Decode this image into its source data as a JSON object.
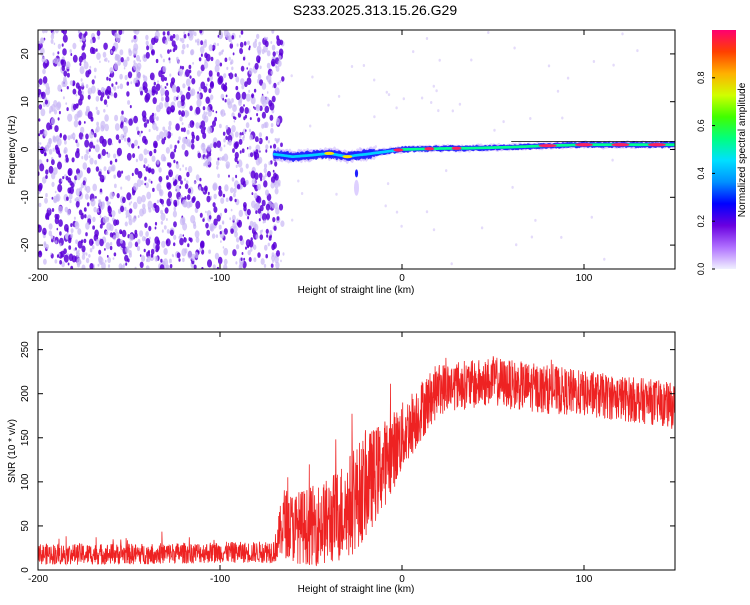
{
  "page_title": "S233.2025.313.15.26.G29",
  "colors": {
    "snr_line": "#ee2222",
    "scatter_dark": "#5a00d8",
    "scatter_light": "#c9b8f5",
    "colorbar": [
      "#f0f0ff",
      "#b070ff",
      "#6a00e0",
      "#0000ff",
      "#0090ff",
      "#00e0ff",
      "#00ff80",
      "#40ff00",
      "#d0ff00",
      "#ffb000",
      "#ff4000",
      "#ff0070"
    ]
  },
  "chart_data": [
    {
      "type": "heatmap",
      "title": "S233.2025.313.15.26.G29",
      "xlabel": "Height of straight line (km)",
      "ylabel": "Frequency (Hz)",
      "xlim": [
        -200,
        150
      ],
      "ylim": [
        -25,
        25
      ],
      "xticks": [
        "-200",
        "-100",
        "0",
        "100"
      ],
      "xtick_values": [
        -200,
        -100,
        0,
        100
      ],
      "yticks": [
        "-20",
        "-10",
        "0",
        "10",
        "20"
      ],
      "ytick_values": [
        -20,
        -10,
        0,
        10,
        20
      ],
      "noise_region_x": [
        -200,
        -65
      ],
      "signal_track": {
        "x": [
          -70,
          -60,
          -50,
          -40,
          -30,
          -25,
          -20,
          -10,
          0,
          20,
          40,
          60,
          80,
          100,
          120,
          150
        ],
        "frequency": [
          -1,
          -1.5,
          -1.2,
          -0.8,
          -1.5,
          -1.2,
          -1,
          -0.5,
          0,
          0.2,
          0.3,
          0.5,
          0.8,
          1,
          1,
          1
        ]
      },
      "colorbar": {
        "label": "Normalized spectral amplitude",
        "range": [
          0,
          1
        ],
        "ticks": [
          "0.0",
          "0.2",
          "0.4",
          "0.6",
          "0.8"
        ],
        "tick_values": [
          0,
          0.2,
          0.4,
          0.6,
          0.8
        ]
      }
    },
    {
      "type": "line",
      "xlabel": "Height of straight line (km)",
      "ylabel": "SNR (10 * v/v)",
      "xlim": [
        -200,
        150
      ],
      "ylim": [
        0,
        270
      ],
      "xticks": [
        "-200",
        "-100",
        "0",
        "100"
      ],
      "xtick_values": [
        -200,
        -100,
        0,
        100
      ],
      "yticks": [
        "0",
        "50",
        "100",
        "150",
        "200",
        "250"
      ],
      "ytick_values": [
        0,
        50,
        100,
        150,
        200,
        250
      ],
      "series": [
        {
          "name": "SNR",
          "x": [
            -200,
            -150,
            -100,
            -80,
            -70,
            -65,
            -60,
            -50,
            -40,
            -30,
            -20,
            -10,
            0,
            10,
            20,
            30,
            40,
            50,
            60,
            80,
            100,
            120,
            140,
            150
          ],
          "baseline": [
            18,
            18,
            20,
            20,
            22,
            55,
            48,
            50,
            55,
            70,
            95,
            120,
            150,
            180,
            205,
            210,
            210,
            215,
            210,
            205,
            200,
            195,
            190,
            185
          ],
          "amplitude": [
            12,
            12,
            12,
            12,
            14,
            40,
            40,
            45,
            50,
            60,
            60,
            50,
            40,
            35,
            30,
            28,
            28,
            28,
            28,
            28,
            26,
            26,
            26,
            26
          ]
        }
      ]
    }
  ]
}
